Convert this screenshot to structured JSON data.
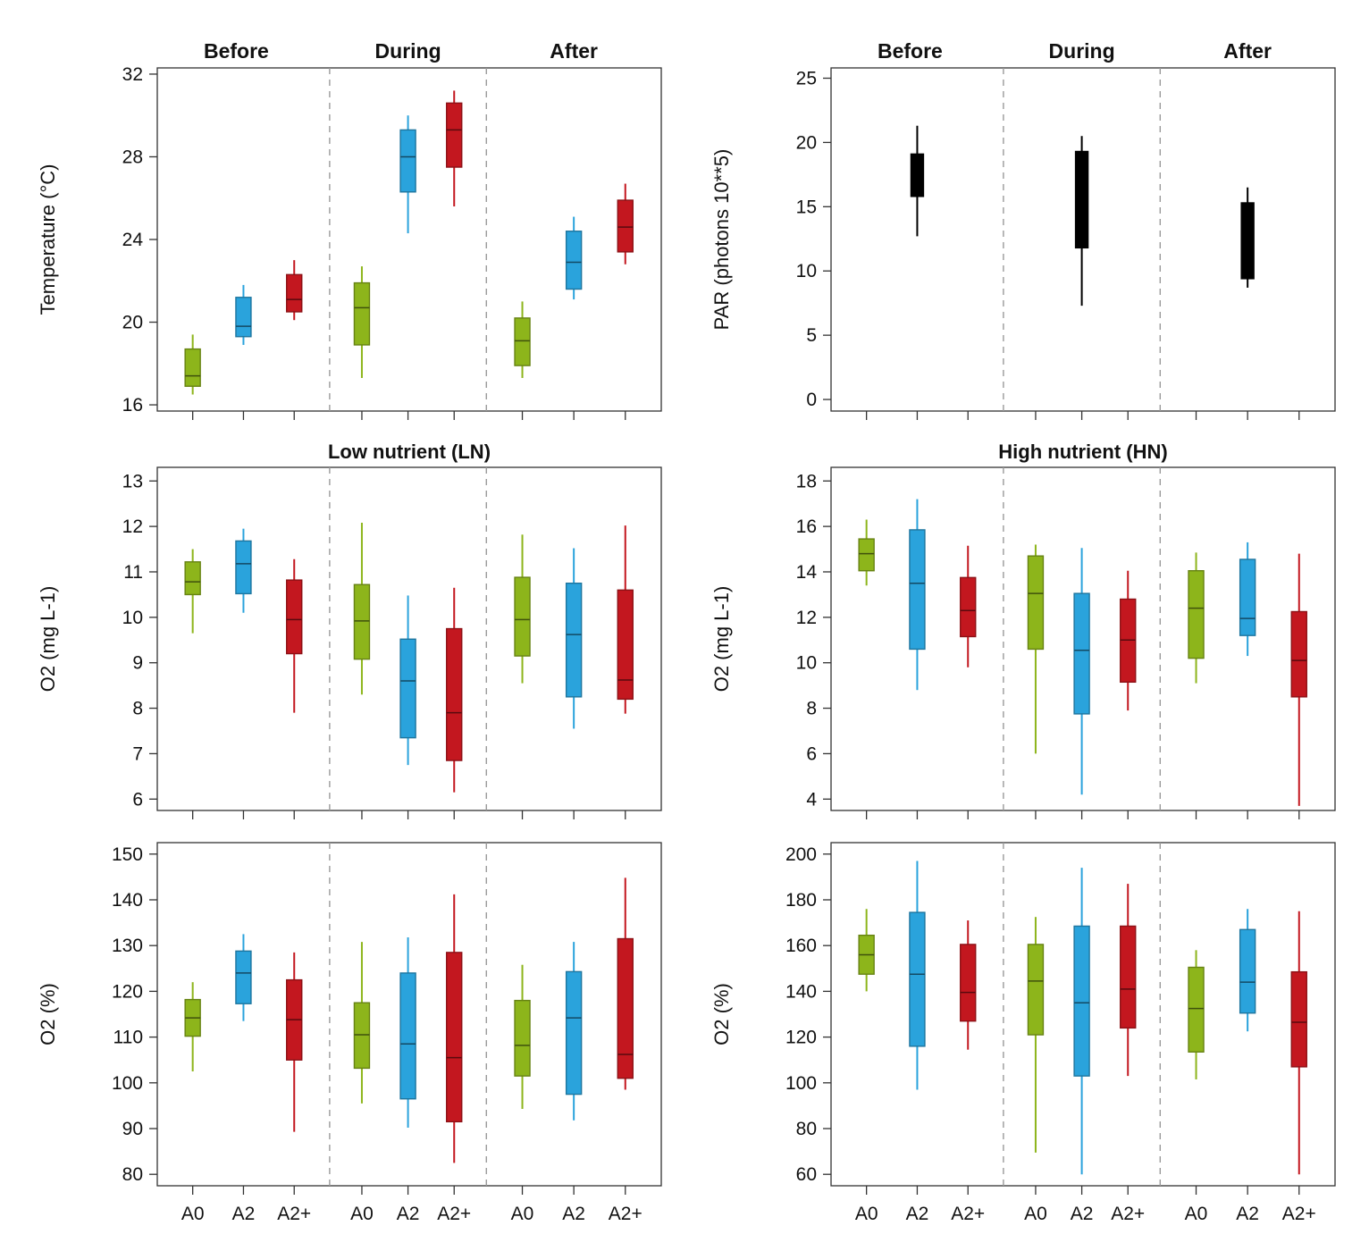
{
  "figure": {
    "phases": [
      "Before",
      "During",
      "After"
    ],
    "groups": [
      "A0",
      "A2",
      "A2+"
    ],
    "colors": {
      "A0": "#8db51b",
      "A2": "#2aa3dc",
      "A2+": "#c3171f",
      "PAR": "#000000"
    }
  },
  "chart_data": [
    {
      "id": "temp",
      "type": "box",
      "title": "",
      "column": "left",
      "row": 0,
      "ylabel": "Temperature (°C)",
      "ylim": [
        15.7,
        32.3
      ],
      "yticks": [
        16,
        20,
        24,
        28,
        32
      ],
      "show_phase_labels": true,
      "show_xcat_labels": false,
      "series": [
        {
          "phase": "Before",
          "group": "A0",
          "min": 16.5,
          "q1": 16.9,
          "median": 17.4,
          "q3": 18.7,
          "max": 19.4
        },
        {
          "phase": "Before",
          "group": "A2",
          "min": 18.9,
          "q1": 19.3,
          "median": 19.8,
          "q3": 21.2,
          "max": 21.8
        },
        {
          "phase": "Before",
          "group": "A2+",
          "min": 20.1,
          "q1": 20.5,
          "median": 21.1,
          "q3": 22.3,
          "max": 23.0
        },
        {
          "phase": "During",
          "group": "A0",
          "min": 17.3,
          "q1": 18.9,
          "median": 20.7,
          "q3": 21.9,
          "max": 22.7
        },
        {
          "phase": "During",
          "group": "A2",
          "min": 24.3,
          "q1": 26.3,
          "median": 28.0,
          "q3": 29.3,
          "max": 30.0
        },
        {
          "phase": "During",
          "group": "A2+",
          "min": 25.6,
          "q1": 27.5,
          "median": 29.3,
          "q3": 30.6,
          "max": 31.2
        },
        {
          "phase": "After",
          "group": "A0",
          "min": 17.3,
          "q1": 17.9,
          "median": 19.1,
          "q3": 20.2,
          "max": 21.0
        },
        {
          "phase": "After",
          "group": "A2",
          "min": 21.1,
          "q1": 21.6,
          "median": 22.9,
          "q3": 24.4,
          "max": 25.1
        },
        {
          "phase": "After",
          "group": "A2+",
          "min": 22.8,
          "q1": 23.4,
          "median": 24.6,
          "q3": 25.9,
          "max": 26.7
        }
      ]
    },
    {
      "id": "par",
      "type": "box",
      "title": "",
      "column": "right",
      "row": 0,
      "ylabel": "PAR (photons 10**5)",
      "ylim": [
        -0.9,
        25.8
      ],
      "yticks": [
        0,
        5,
        10,
        15,
        20,
        25
      ],
      "show_phase_labels": true,
      "show_xcat_labels": false,
      "series": [
        {
          "phase": "Before",
          "group": "PAR",
          "min": 12.7,
          "q1": 15.8,
          "median": 17.5,
          "q3": 19.1,
          "max": 21.3
        },
        {
          "phase": "During",
          "group": "PAR",
          "min": 7.3,
          "q1": 11.8,
          "median": 14.5,
          "q3": 19.3,
          "max": 20.5
        },
        {
          "phase": "After",
          "group": "PAR",
          "min": 8.7,
          "q1": 9.4,
          "median": 11.5,
          "q3": 15.3,
          "max": 16.5
        }
      ]
    },
    {
      "id": "o2mg_ln",
      "type": "box",
      "title": "Low nutrient (LN)",
      "column": "left",
      "row": 1,
      "ylabel": "O2 (mg L-1)",
      "ylim": [
        5.75,
        13.3
      ],
      "yticks": [
        6,
        7,
        8,
        9,
        10,
        11,
        12,
        13
      ],
      "show_phase_labels": false,
      "show_xcat_labels": false,
      "series": [
        {
          "phase": "Before",
          "group": "A0",
          "min": 9.65,
          "q1": 10.5,
          "median": 10.78,
          "q3": 11.22,
          "max": 11.5
        },
        {
          "phase": "Before",
          "group": "A2",
          "min": 10.1,
          "q1": 10.52,
          "median": 11.18,
          "q3": 11.68,
          "max": 11.95
        },
        {
          "phase": "Before",
          "group": "A2+",
          "min": 7.9,
          "q1": 9.2,
          "median": 9.95,
          "q3": 10.82,
          "max": 11.28
        },
        {
          "phase": "During",
          "group": "A0",
          "min": 8.3,
          "q1": 9.08,
          "median": 9.92,
          "q3": 10.72,
          "max": 12.08
        },
        {
          "phase": "During",
          "group": "A2",
          "min": 6.75,
          "q1": 7.35,
          "median": 8.6,
          "q3": 9.52,
          "max": 10.48
        },
        {
          "phase": "During",
          "group": "A2+",
          "min": 6.15,
          "q1": 6.85,
          "median": 7.9,
          "q3": 9.75,
          "max": 10.65
        },
        {
          "phase": "After",
          "group": "A0",
          "min": 8.55,
          "q1": 9.15,
          "median": 9.95,
          "q3": 10.88,
          "max": 11.82
        },
        {
          "phase": "After",
          "group": "A2",
          "min": 7.55,
          "q1": 8.25,
          "median": 9.62,
          "q3": 10.75,
          "max": 11.52
        },
        {
          "phase": "After",
          "group": "A2+",
          "min": 7.88,
          "q1": 8.2,
          "median": 8.62,
          "q3": 10.6,
          "max": 12.02
        }
      ]
    },
    {
      "id": "o2mg_hn",
      "type": "box",
      "title": "High nutrient (HN)",
      "column": "right",
      "row": 1,
      "ylabel": "O2 (mg L-1)",
      "ylim": [
        3.5,
        18.6
      ],
      "yticks": [
        4,
        6,
        8,
        10,
        12,
        14,
        16,
        18
      ],
      "show_phase_labels": false,
      "show_xcat_labels": false,
      "series": [
        {
          "phase": "Before",
          "group": "A0",
          "min": 13.4,
          "q1": 14.05,
          "median": 14.8,
          "q3": 15.45,
          "max": 16.3
        },
        {
          "phase": "Before",
          "group": "A2",
          "min": 8.8,
          "q1": 10.6,
          "median": 13.5,
          "q3": 15.85,
          "max": 17.2
        },
        {
          "phase": "Before",
          "group": "A2+",
          "min": 9.8,
          "q1": 11.15,
          "median": 12.3,
          "q3": 13.75,
          "max": 15.15
        },
        {
          "phase": "During",
          "group": "A0",
          "min": 6.0,
          "q1": 10.6,
          "median": 13.05,
          "q3": 14.7,
          "max": 15.2
        },
        {
          "phase": "During",
          "group": "A2",
          "min": 4.2,
          "q1": 7.75,
          "median": 10.55,
          "q3": 13.05,
          "max": 15.05
        },
        {
          "phase": "During",
          "group": "A2+",
          "min": 7.9,
          "q1": 9.15,
          "median": 11.0,
          "q3": 12.8,
          "max": 14.05
        },
        {
          "phase": "After",
          "group": "A0",
          "min": 9.1,
          "q1": 10.2,
          "median": 12.4,
          "q3": 14.05,
          "max": 14.85
        },
        {
          "phase": "After",
          "group": "A2",
          "min": 10.3,
          "q1": 11.2,
          "median": 11.95,
          "q3": 14.55,
          "max": 15.3
        },
        {
          "phase": "After",
          "group": "A2+",
          "min": 3.7,
          "q1": 8.5,
          "median": 10.1,
          "q3": 12.25,
          "max": 14.8
        }
      ]
    },
    {
      "id": "o2pct_ln",
      "type": "box",
      "title": "",
      "column": "left",
      "row": 2,
      "ylabel": "O2 (%)",
      "ylim": [
        77.5,
        152.5
      ],
      "yticks": [
        80,
        90,
        100,
        110,
        120,
        130,
        140,
        150
      ],
      "show_phase_labels": false,
      "show_xcat_labels": true,
      "series": [
        {
          "phase": "Before",
          "group": "A0",
          "min": 102.5,
          "q1": 110.2,
          "median": 114.2,
          "q3": 118.2,
          "max": 122.0
        },
        {
          "phase": "Before",
          "group": "A2",
          "min": 113.5,
          "q1": 117.3,
          "median": 124.0,
          "q3": 128.8,
          "max": 132.5
        },
        {
          "phase": "Before",
          "group": "A2+",
          "min": 89.3,
          "q1": 105.0,
          "median": 113.8,
          "q3": 122.5,
          "max": 128.5
        },
        {
          "phase": "During",
          "group": "A0",
          "min": 95.5,
          "q1": 103.2,
          "median": 110.5,
          "q3": 117.5,
          "max": 130.8
        },
        {
          "phase": "During",
          "group": "A2",
          "min": 90.2,
          "q1": 96.5,
          "median": 108.5,
          "q3": 124.0,
          "max": 131.8
        },
        {
          "phase": "During",
          "group": "A2+",
          "min": 82.5,
          "q1": 91.5,
          "median": 105.5,
          "q3": 128.5,
          "max": 141.2
        },
        {
          "phase": "After",
          "group": "A0",
          "min": 94.3,
          "q1": 101.5,
          "median": 108.2,
          "q3": 118.0,
          "max": 125.8
        },
        {
          "phase": "After",
          "group": "A2",
          "min": 91.8,
          "q1": 97.5,
          "median": 114.2,
          "q3": 124.3,
          "max": 130.8
        },
        {
          "phase": "After",
          "group": "A2+",
          "min": 98.5,
          "q1": 101.0,
          "median": 106.2,
          "q3": 131.5,
          "max": 144.8
        }
      ]
    },
    {
      "id": "o2pct_hn",
      "type": "box",
      "title": "",
      "column": "right",
      "row": 2,
      "ylabel": "O2 (%)",
      "ylim": [
        55,
        205
      ],
      "yticks": [
        60,
        80,
        100,
        120,
        140,
        160,
        180,
        200
      ],
      "show_phase_labels": false,
      "show_xcat_labels": true,
      "series": [
        {
          "phase": "Before",
          "group": "A0",
          "min": 140.0,
          "q1": 147.5,
          "median": 156.0,
          "q3": 164.5,
          "max": 176.0
        },
        {
          "phase": "Before",
          "group": "A2",
          "min": 97.0,
          "q1": 116.0,
          "median": 147.5,
          "q3": 174.5,
          "max": 197.0
        },
        {
          "phase": "Before",
          "group": "A2+",
          "min": 114.5,
          "q1": 127.0,
          "median": 139.5,
          "q3": 160.5,
          "max": 171.0
        },
        {
          "phase": "During",
          "group": "A0",
          "min": 69.5,
          "q1": 121.0,
          "median": 144.5,
          "q3": 160.5,
          "max": 172.5
        },
        {
          "phase": "During",
          "group": "A2",
          "min": 60.0,
          "q1": 103.0,
          "median": 135.0,
          "q3": 168.5,
          "max": 194.0
        },
        {
          "phase": "During",
          "group": "A2+",
          "min": 103.0,
          "q1": 124.0,
          "median": 141.0,
          "q3": 168.5,
          "max": 187.0
        },
        {
          "phase": "After",
          "group": "A0",
          "min": 101.5,
          "q1": 113.5,
          "median": 132.5,
          "q3": 150.5,
          "max": 158.0
        },
        {
          "phase": "After",
          "group": "A2",
          "min": 122.5,
          "q1": 130.5,
          "median": 144.0,
          "q3": 167.0,
          "max": 176.0
        },
        {
          "phase": "After",
          "group": "A2+",
          "min": 60.0,
          "q1": 107.0,
          "median": 126.5,
          "q3": 148.5,
          "max": 175.0
        }
      ]
    }
  ]
}
